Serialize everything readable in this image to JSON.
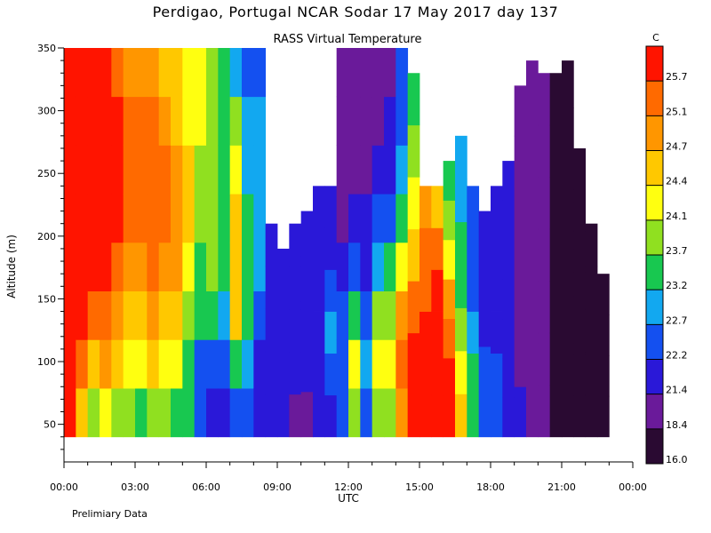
{
  "chart_data": {
    "type": "heatmap",
    "title": "Perdigao, Portugal  NCAR Sodar  17 May 2017  day 137",
    "subtitle": "RASS Virtual Temperature",
    "xlabel": "UTC",
    "ylabel": "Altitude (m)",
    "note": "Prelimiary Data",
    "x_ticks": [
      "00:00",
      "03:00",
      "06:00",
      "09:00",
      "12:00",
      "15:00",
      "18:00",
      "21:00",
      "00:00"
    ],
    "x_range_hours": [
      0,
      24
    ],
    "y_ticks": [
      50,
      100,
      150,
      200,
      250,
      300,
      350
    ],
    "ylim": [
      20,
      350
    ],
    "colorbar": {
      "unit": "C",
      "levels": [
        16.0,
        18.4,
        21.4,
        22.2,
        22.7,
        23.2,
        23.7,
        24.1,
        24.4,
        24.7,
        25.1,
        25.7
      ],
      "level_labels": [
        "16.0",
        "18.4",
        "21.4",
        "22.2",
        "22.7",
        "23.2",
        "23.7",
        "24.1",
        "24.4",
        "24.7",
        "25.1",
        "25.7"
      ],
      "colors": [
        "#2a0a32",
        "#6a1a9a",
        "#2a18d8",
        "#1450f0",
        "#12a8f0",
        "#18c850",
        "#90e020",
        "#ffff10",
        "#ffc800",
        "#ff9600",
        "#ff6a00",
        "#ff1400"
      ]
    },
    "data_start_altitude_m": 40,
    "columns": [
      {
        "t": 0.0,
        "top": 350,
        "v": [
          25.9,
          25.9,
          25.8,
          25.8,
          25.9,
          25.9,
          25.9,
          25.9
        ]
      },
      {
        "t": 0.5,
        "top": 350,
        "v": [
          24.4,
          25.1,
          25.8,
          25.9,
          25.9,
          25.9,
          25.9,
          25.9
        ]
      },
      {
        "t": 1.0,
        "top": 350,
        "v": [
          23.7,
          24.4,
          25.1,
          25.8,
          25.9,
          25.9,
          25.9,
          25.9
        ]
      },
      {
        "t": 1.5,
        "top": 350,
        "v": [
          24.1,
          24.7,
          25.2,
          25.8,
          25.9,
          25.9,
          25.9,
          25.8
        ]
      },
      {
        "t": 2.0,
        "top": 350,
        "v": [
          23.8,
          24.5,
          24.9,
          25.3,
          25.8,
          25.9,
          25.8,
          25.3
        ]
      },
      {
        "t": 2.5,
        "top": 350,
        "v": [
          23.9,
          24.2,
          24.5,
          24.9,
          25.2,
          25.3,
          25.1,
          24.9
        ]
      },
      {
        "t": 3.0,
        "top": 350,
        "v": [
          23.5,
          24.2,
          24.5,
          24.8,
          25.2,
          25.4,
          25.2,
          24.9
        ]
      },
      {
        "t": 3.5,
        "top": 350,
        "v": [
          23.8,
          24.4,
          24.8,
          25.3,
          25.5,
          25.3,
          25.1,
          24.8
        ]
      },
      {
        "t": 4.0,
        "top": 350,
        "v": [
          23.9,
          24.2,
          24.5,
          24.9,
          25.2,
          25.1,
          24.9,
          24.5
        ]
      },
      {
        "t": 4.5,
        "top": 350,
        "v": [
          23.6,
          24.2,
          24.5,
          24.8,
          24.9,
          24.8,
          24.6,
          24.4
        ]
      },
      {
        "t": 5.0,
        "top": 350,
        "v": [
          23.2,
          23.5,
          23.9,
          24.3,
          24.5,
          24.4,
          24.3,
          24.2
        ]
      },
      {
        "t": 5.5,
        "top": 350,
        "v": [
          22.2,
          22.6,
          23.2,
          23.6,
          23.9,
          24.0,
          24.1,
          24.2
        ]
      },
      {
        "t": 6.0,
        "top": 350,
        "v": [
          21.5,
          22.5,
          23.4,
          23.7,
          23.9,
          23.9,
          23.8,
          23.9
        ]
      },
      {
        "t": 6.5,
        "top": 350,
        "v": [
          21.6,
          22.4,
          23.0,
          23.3,
          23.4,
          23.5,
          23.5,
          23.6
        ]
      },
      {
        "t": 7.0,
        "top": 350,
        "v": [
          22.5,
          23.5,
          24.4,
          24.6,
          24.4,
          24.2,
          23.8,
          23.0
        ]
      },
      {
        "t": 7.5,
        "top": 350,
        "v": [
          22.3,
          23.0,
          23.5,
          23.4,
          23.2,
          23.0,
          22.8,
          22.6
        ]
      },
      {
        "t": 8.0,
        "top": 350,
        "v": [
          21.5,
          22.1,
          22.5,
          22.7,
          22.8,
          22.8,
          22.9,
          22.6
        ]
      },
      {
        "t": 8.5,
        "top": 210,
        "v": [
          21.8,
          22.0,
          22.1,
          22.0,
          22.0
        ]
      },
      {
        "t": 9.0,
        "top": 190,
        "v": [
          21.6,
          21.8,
          21.9,
          22.0
        ]
      },
      {
        "t": 9.5,
        "top": 210,
        "v": [
          21.1,
          21.5,
          21.4,
          21.4,
          21.4
        ]
      },
      {
        "t": 10.0,
        "top": 220,
        "v": [
          21.3,
          21.5,
          21.7,
          21.6,
          21.6
        ]
      },
      {
        "t": 10.5,
        "top": 240,
        "v": [
          21.6,
          21.9,
          22.1,
          21.8,
          21.7,
          21.6
        ]
      },
      {
        "t": 11.0,
        "top": 240,
        "v": [
          21.7,
          22.3,
          22.8,
          22.2,
          21.8,
          21.7
        ]
      },
      {
        "t": 11.5,
        "top": 350,
        "v": [
          22.2,
          22.5,
          22.2,
          21.5,
          21.0,
          20.2,
          19.8,
          19.6
        ]
      },
      {
        "t": 12.0,
        "top": 350,
        "v": [
          23.8,
          24.3,
          23.6,
          22.5,
          21.6,
          20.5,
          20.0,
          19.5
        ]
      },
      {
        "t": 12.5,
        "top": 350,
        "v": [
          22.3,
          22.9,
          22.5,
          22.0,
          21.5,
          21.0,
          20.5,
          20.0
        ]
      },
      {
        "t": 13.0,
        "top": 350,
        "v": [
          23.7,
          24.2,
          23.8,
          22.9,
          22.2,
          21.7,
          21.2,
          20.7
        ]
      },
      {
        "t": 13.5,
        "top": 350,
        "v": [
          23.9,
          24.3,
          24.0,
          23.2,
          22.5,
          22.0,
          21.6,
          21.3
        ]
      },
      {
        "t": 14.0,
        "top": 350,
        "v": [
          24.7,
          25.1,
          24.9,
          24.2,
          23.3,
          22.8,
          22.5,
          22.2
        ]
      },
      {
        "t": 14.5,
        "top": 330,
        "v": [
          25.8,
          25.9,
          25.3,
          24.6,
          24.1,
          23.7,
          23.5
        ]
      },
      {
        "t": 15.0,
        "top": 240,
        "v": [
          25.9,
          25.9,
          25.8,
          25.6,
          25.3,
          24.9
        ]
      },
      {
        "t": 15.5,
        "top": 240,
        "v": [
          25.9,
          25.9,
          25.9,
          25.8,
          25.3,
          24.6
        ]
      },
      {
        "t": 16.0,
        "top": 260,
        "v": [
          25.9,
          25.8,
          25.3,
          24.9,
          24.3,
          23.8,
          23.5
        ]
      },
      {
        "t": 16.5,
        "top": 280,
        "v": [
          24.5,
          24.1,
          23.7,
          23.4,
          23.2,
          23.0,
          22.8
        ]
      },
      {
        "t": 17.0,
        "top": 240,
        "v": [
          23.4,
          23.3,
          22.9,
          22.5,
          22.3,
          22.2
        ]
      },
      {
        "t": 17.5,
        "top": 220,
        "v": [
          22.6,
          22.3,
          22.0,
          21.8,
          21.6
        ]
      },
      {
        "t": 18.0,
        "top": 240,
        "v": [
          22.2,
          22.3,
          22.1,
          21.8,
          21.6,
          21.5
        ]
      },
      {
        "t": 18.5,
        "top": 260,
        "v": [
          21.8,
          21.7,
          21.6,
          21.5,
          21.5,
          21.5,
          21.4
        ]
      },
      {
        "t": 19.0,
        "top": 320,
        "v": [
          21.4,
          21.3,
          21.2,
          21.1,
          20.9,
          20.5,
          20.3
        ]
      },
      {
        "t": 19.5,
        "top": 340,
        "v": [
          19.6,
          19.4,
          19.2,
          19.0,
          18.9,
          18.8,
          18.7,
          18.6
        ]
      },
      {
        "t": 20.0,
        "top": 330,
        "v": [
          19.2,
          19.0,
          18.9,
          18.9,
          18.8,
          18.7,
          18.6
        ]
      },
      {
        "t": 20.5,
        "top": 330,
        "v": [
          17.2,
          17.0,
          16.8,
          16.5,
          16.4,
          16.3,
          16.2
        ]
      },
      {
        "t": 21.0,
        "top": 340,
        "v": [
          16.9,
          16.5,
          16.3,
          16.2,
          16.1,
          16.1,
          16.1,
          16.1
        ]
      },
      {
        "t": 21.5,
        "top": 270,
        "v": [
          16.6,
          16.3,
          16.2,
          16.1,
          16.1,
          16.1,
          16.1
        ]
      },
      {
        "t": 22.0,
        "top": 210,
        "v": [
          16.4,
          16.2,
          16.1,
          16.1,
          16.1
        ]
      },
      {
        "t": 22.5,
        "top": 170,
        "v": [
          16.7,
          16.4,
          16.2,
          16.1
        ]
      }
    ]
  }
}
